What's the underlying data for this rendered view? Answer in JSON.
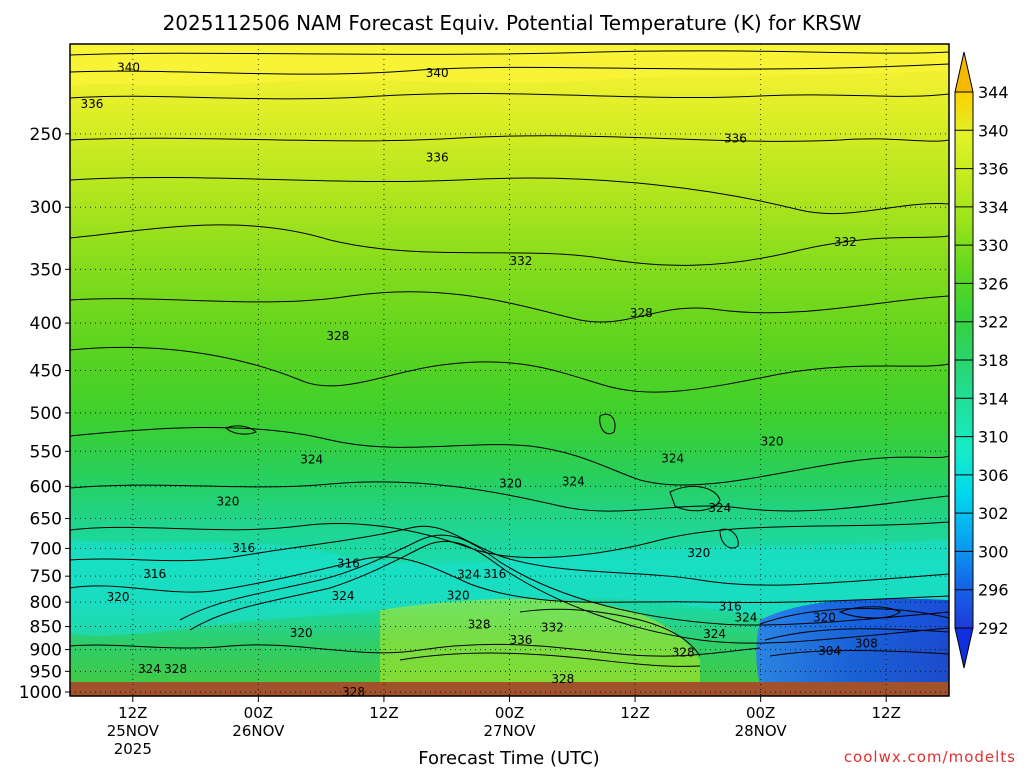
{
  "chart_data": {
    "type": "heatmap",
    "title": "2025112506 NAM Forecast Equiv. Potential Temperature (K) for KRSW",
    "xlabel": "Forecast Time (UTC)",
    "ylabel": "",
    "credit": "coolwx.com/modelts",
    "x_ticks": [
      {
        "hour": 6,
        "label": [
          "12Z",
          "25NOV",
          "2025"
        ]
      },
      {
        "hour": 18,
        "label": [
          "00Z",
          "26NOV"
        ]
      },
      {
        "hour": 30,
        "label": [
          "12Z"
        ]
      },
      {
        "hour": 42,
        "label": [
          "00Z",
          "27NOV"
        ]
      },
      {
        "hour": 54,
        "label": [
          "12Z"
        ]
      },
      {
        "hour": 66,
        "label": [
          "00Z",
          "28NOV"
        ]
      },
      {
        "hour": 78,
        "label": [
          "12Z"
        ]
      }
    ],
    "xlim": [
      0,
      84
    ],
    "y_ticks": [
      250,
      300,
      350,
      400,
      450,
      500,
      550,
      600,
      650,
      700,
      750,
      800,
      850,
      900,
      950,
      1000
    ],
    "ylim": [
      1010,
      200
    ],
    "y_scale": "log",
    "grid": true,
    "colorbar": {
      "label_values": [
        292,
        296,
        300,
        302,
        306,
        310,
        314,
        318,
        322,
        326,
        330,
        334,
        336,
        340,
        344
      ],
      "colors": [
        "#1f3bd8",
        "#1466e8",
        "#0aa0f0",
        "#00d8ec",
        "#16ecc8",
        "#20e09a",
        "#2ad46c",
        "#36d23a",
        "#62d81e",
        "#96e21c",
        "#c0ea1e",
        "#e2f228",
        "#f8f436",
        "#fbd000"
      ]
    },
    "contour_labels": [
      {
        "text": "340",
        "hour": 4.5,
        "p": 212
      },
      {
        "text": "340",
        "hour": 34,
        "p": 215
      },
      {
        "text": "336",
        "hour": 1,
        "p": 232
      },
      {
        "text": "336",
        "hour": 34,
        "p": 265
      },
      {
        "text": "336",
        "hour": 62.5,
        "p": 253
      },
      {
        "text": "332",
        "hour": 42,
        "p": 343
      },
      {
        "text": "332",
        "hour": 73,
        "p": 327
      },
      {
        "text": "328",
        "hour": 24.5,
        "p": 413
      },
      {
        "text": "328",
        "hour": 53.5,
        "p": 390
      },
      {
        "text": "324",
        "hour": 22,
        "p": 561
      },
      {
        "text": "324",
        "hour": 47,
        "p": 593
      },
      {
        "text": "324",
        "hour": 56.5,
        "p": 560
      },
      {
        "text": "324",
        "hour": 61,
        "p": 633
      },
      {
        "text": "324",
        "hour": 25,
        "p": 788
      },
      {
        "text": "324",
        "hour": 37,
        "p": 747
      },
      {
        "text": "324",
        "hour": 63.5,
        "p": 831
      },
      {
        "text": "324",
        "hour": 60.5,
        "p": 866
      },
      {
        "text": "324",
        "hour": 6.5,
        "p": 945
      },
      {
        "text": "320",
        "hour": 14,
        "p": 623
      },
      {
        "text": "320",
        "hour": 41,
        "p": 596
      },
      {
        "text": "320",
        "hour": 66,
        "p": 537
      },
      {
        "text": "320",
        "hour": 3.5,
        "p": 790
      },
      {
        "text": "320",
        "hour": 36,
        "p": 787
      },
      {
        "text": "320",
        "hour": 59,
        "p": 708
      },
      {
        "text": "320",
        "hour": 71,
        "p": 831
      },
      {
        "text": "320",
        "hour": 21,
        "p": 864
      },
      {
        "text": "316",
        "hour": 15.5,
        "p": 699
      },
      {
        "text": "316",
        "hour": 7,
        "p": 746
      },
      {
        "text": "316",
        "hour": 25.5,
        "p": 727
      },
      {
        "text": "316",
        "hour": 39.5,
        "p": 746
      },
      {
        "text": "316",
        "hour": 62,
        "p": 809
      },
      {
        "text": "328",
        "hour": 38,
        "p": 846
      },
      {
        "text": "328",
        "hour": 9,
        "p": 945
      },
      {
        "text": "328",
        "hour": 26,
        "p": 1000
      },
      {
        "text": "328",
        "hour": 57.5,
        "p": 907
      },
      {
        "text": "328",
        "hour": 46,
        "p": 968
      },
      {
        "text": "332",
        "hour": 45,
        "p": 852
      },
      {
        "text": "336",
        "hour": 42,
        "p": 879
      },
      {
        "text": "308",
        "hour": 75,
        "p": 886
      },
      {
        "text": "304",
        "hour": 71.5,
        "p": 903
      }
    ]
  }
}
